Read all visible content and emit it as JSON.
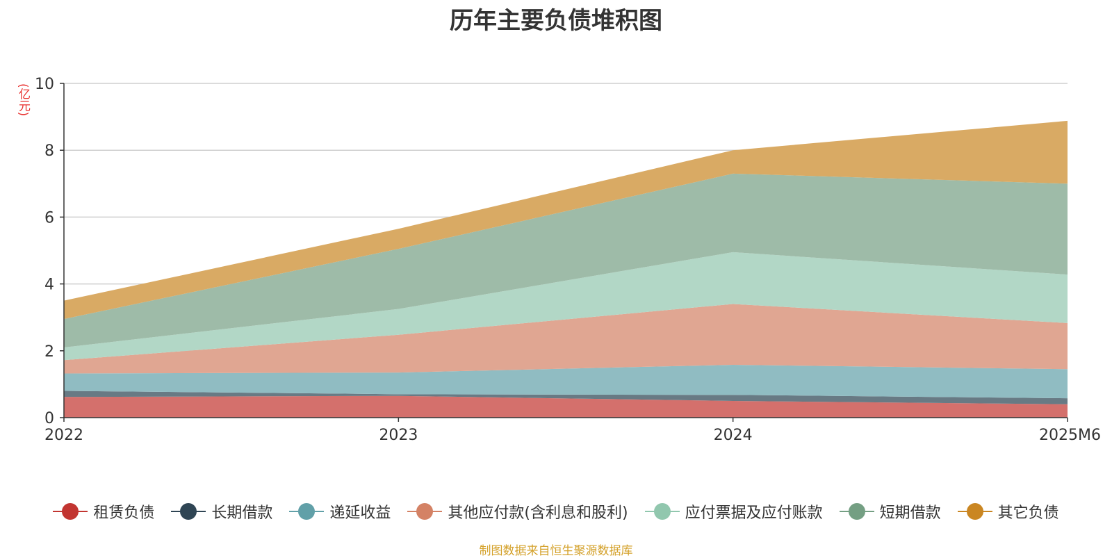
{
  "chart_data": {
    "type": "area",
    "stacked": true,
    "title": "历年主要负债堆积图",
    "unit_label": "(亿元)",
    "categories": [
      "2022",
      "2023",
      "2024",
      "2025M6"
    ],
    "ylim": [
      0,
      10
    ],
    "yticks": [
      0,
      2,
      4,
      6,
      8,
      10
    ],
    "grid": true,
    "legend_position": "bottom",
    "series": [
      {
        "name": "租赁负债",
        "values": [
          0.62,
          0.65,
          0.5,
          0.4
        ],
        "color": "#c23531",
        "fill": "#d4706c"
      },
      {
        "name": "长期借款",
        "values": [
          0.18,
          0.05,
          0.18,
          0.18
        ],
        "color": "#2f4554",
        "fill": "#687a84"
      },
      {
        "name": "递延收益",
        "values": [
          0.52,
          0.65,
          0.9,
          0.87
        ],
        "color": "#61a0a8",
        "fill": "#90bcc2"
      },
      {
        "name": "其他应付款(含利息和股利)",
        "values": [
          0.4,
          1.13,
          1.82,
          1.38
        ],
        "color": "#d48265",
        "fill": "#e0a692"
      },
      {
        "name": "应付票据及应付账款",
        "values": [
          0.38,
          0.77,
          1.55,
          1.45
        ],
        "color": "#91c7ae",
        "fill": "#b2d7c6"
      },
      {
        "name": "短期借款",
        "values": [
          0.85,
          1.8,
          2.35,
          2.72
        ],
        "color": "#749f83",
        "fill": "#9ebba8"
      },
      {
        "name": "其它负债",
        "values": [
          0.55,
          0.6,
          0.7,
          1.88
        ],
        "color": "#ca8622",
        "fill": "#d9aa64"
      }
    ]
  },
  "source": "制图数据来自恒生聚源数据库"
}
